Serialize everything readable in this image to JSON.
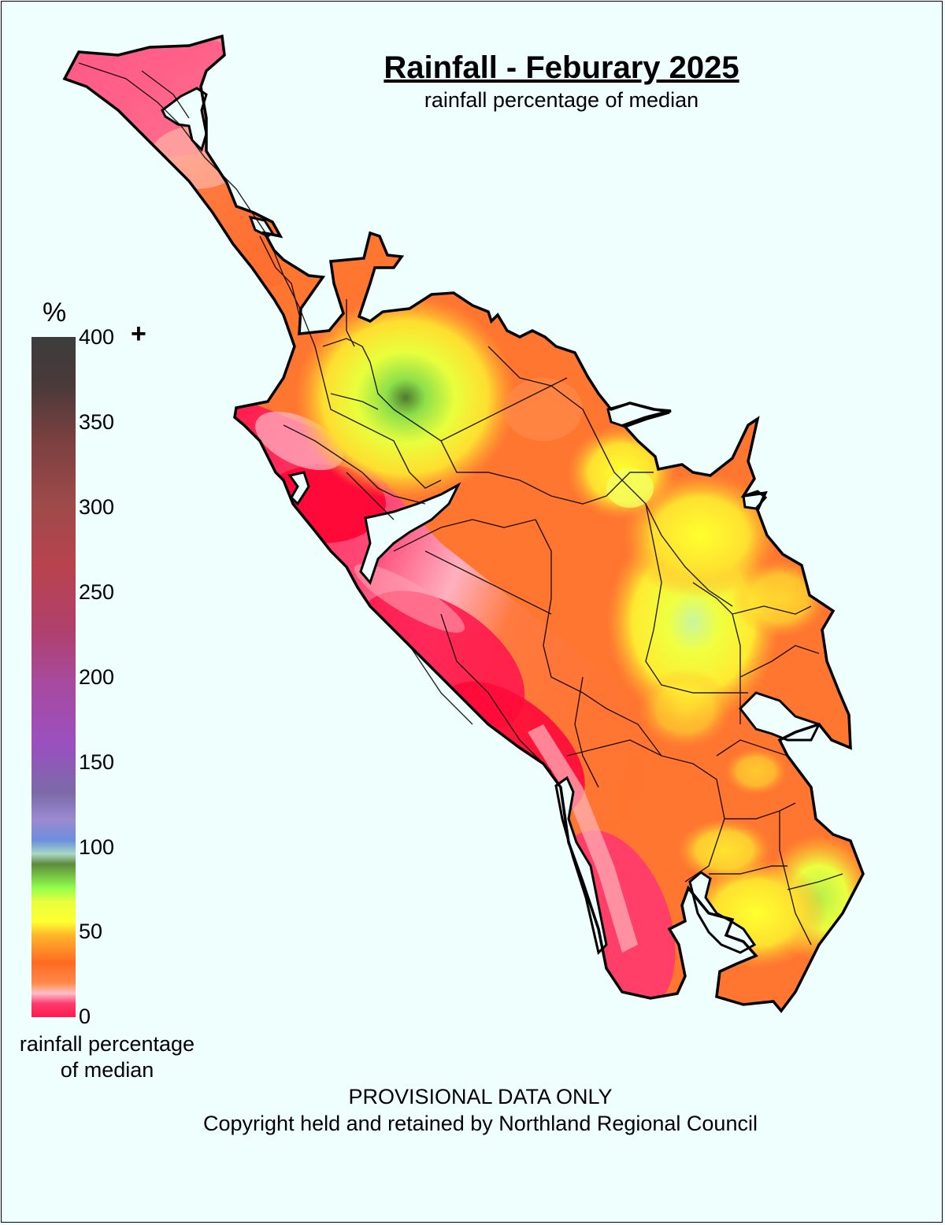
{
  "title": "Rainfall - Feburary 2025",
  "subtitle": "rainfall percentage of median",
  "legend": {
    "unit_symbol": "%",
    "ticks": [
      "400",
      "350",
      "300",
      "250",
      "200",
      "150",
      "100",
      "50",
      "0"
    ],
    "overflow_marker": "+",
    "caption_line1": "rainfall percentage",
    "caption_line2": "of median",
    "colors": {
      "0": "#ff1a4c",
      "50": "#ffff30",
      "100": "#6a9a46",
      "150": "#6c8edc",
      "200": "#a050c0",
      "300": "#b0404a",
      "400": "#3c3c3c"
    }
  },
  "map": {
    "region": "Northland",
    "background_color": "#eefffe",
    "dominant_colors": [
      "#ff3a6a",
      "#ff7a30",
      "#ffee30",
      "#9aef4a"
    ]
  },
  "footer": {
    "notice": "PROVISIONAL DATA ONLY",
    "copyright": "Copyright held and retained by Northland Regional Council"
  }
}
